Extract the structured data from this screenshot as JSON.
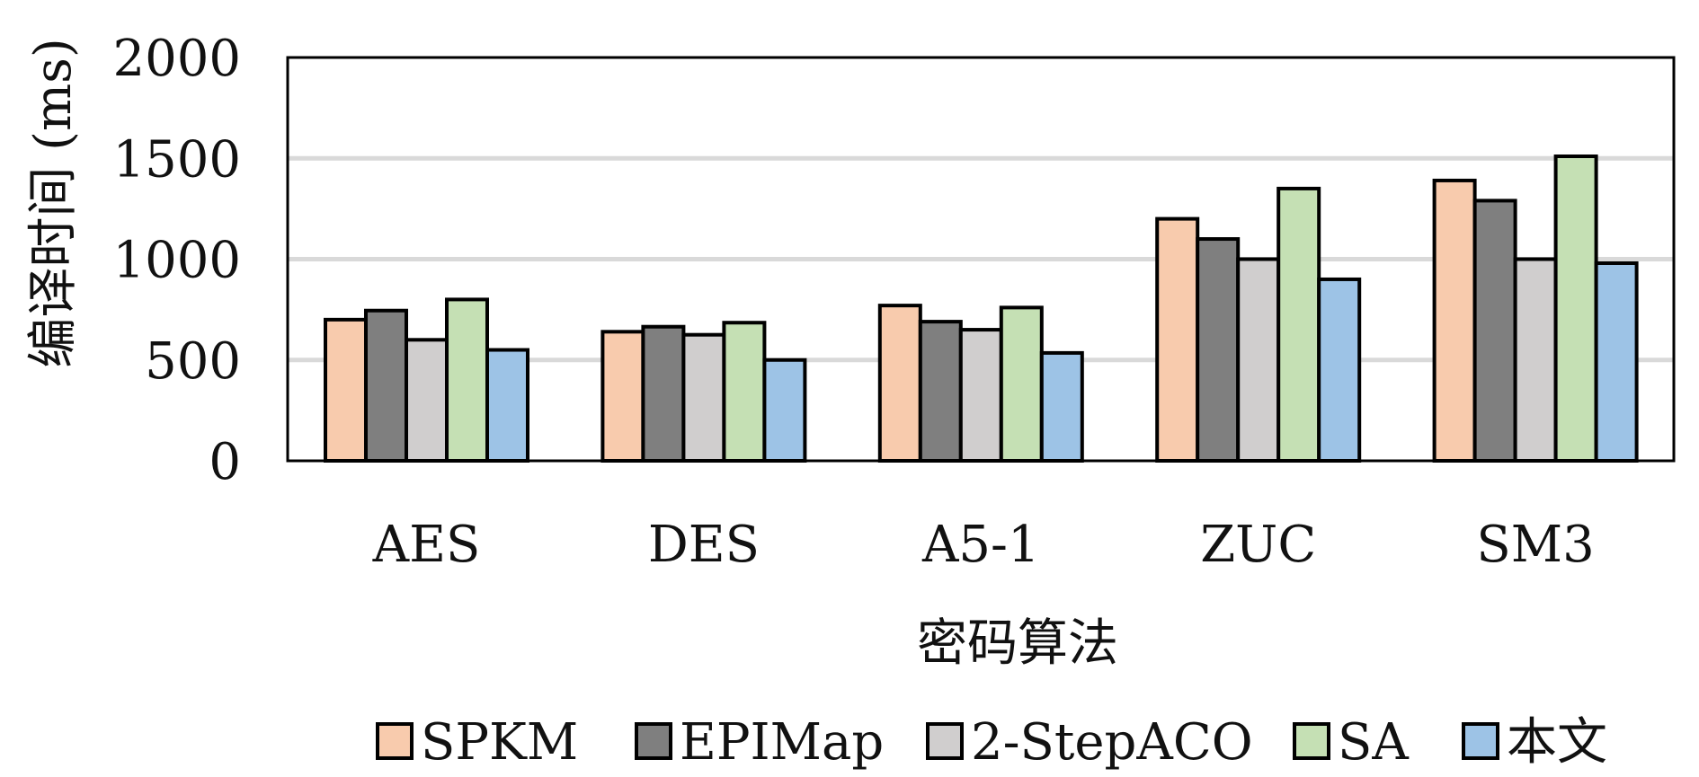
{
  "chart_data": {
    "type": "bar",
    "title": "",
    "xlabel": "密码算法",
    "ylabel": "编译时间 (ms)",
    "ylim": [
      0,
      2000
    ],
    "yticks": [
      0,
      500,
      1000,
      1500,
      2000
    ],
    "grid": true,
    "legend_position": "bottom",
    "categories": [
      "AES",
      "DES",
      "A5-1",
      "ZUC",
      "SM3"
    ],
    "series": [
      {
        "name": "SPKM",
        "color": "#f8cbad",
        "values": [
          700,
          640,
          770,
          1200,
          1390
        ]
      },
      {
        "name": "EPIMap",
        "color": "#7f7f7f",
        "values": [
          745,
          665,
          690,
          1100,
          1290
        ]
      },
      {
        "name": "2-StepACO",
        "color": "#d0cece",
        "values": [
          600,
          625,
          650,
          1000,
          1000
        ]
      },
      {
        "name": "SA",
        "color": "#c5e0b4",
        "values": [
          800,
          685,
          760,
          1350,
          1510
        ]
      },
      {
        "name": "本文",
        "color": "#9dc3e6",
        "values": [
          550,
          500,
          535,
          900,
          980
        ]
      }
    ]
  }
}
